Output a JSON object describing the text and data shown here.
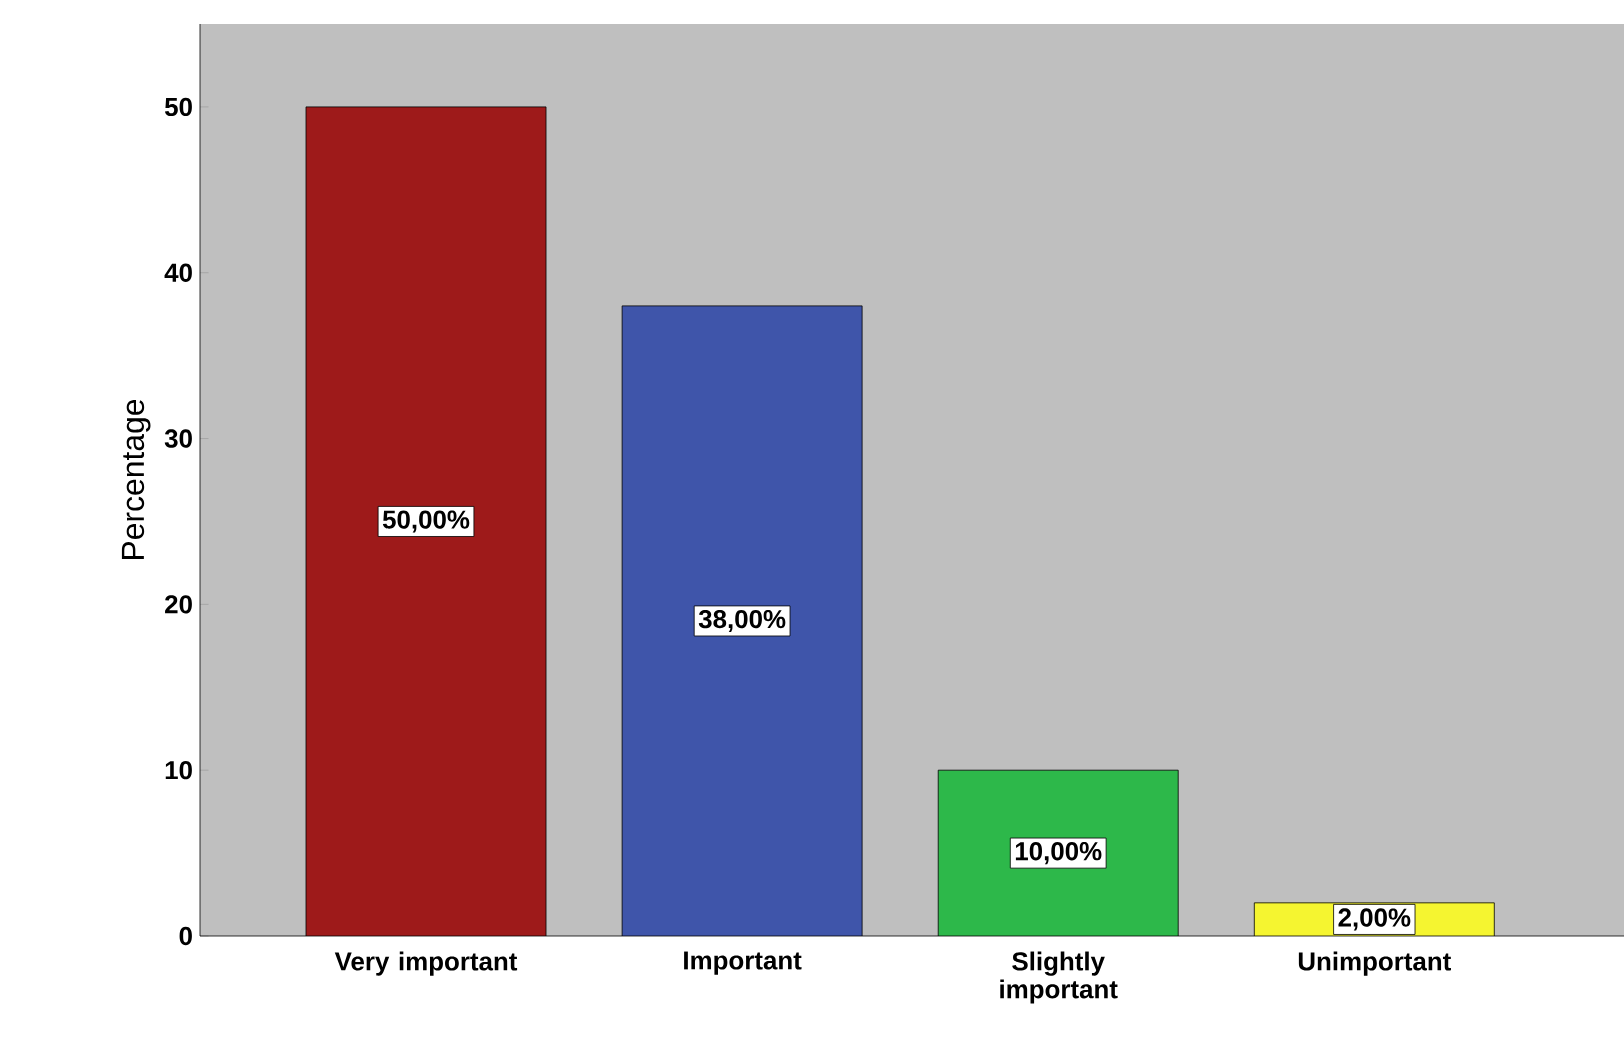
{
  "chart_data": {
    "type": "bar",
    "ylabel": "Percentage",
    "categories": [
      "Very important",
      "Important",
      "Slightly important",
      "Unimportant"
    ],
    "values": [
      50,
      38,
      10,
      2
    ],
    "colors": [
      "#9e1a1a",
      "#3f55aa",
      "#2db84a",
      "#f5f530"
    ],
    "value_labels": [
      "50,00%",
      "38,00%",
      "10,00%",
      "2,00%"
    ],
    "ylim": [
      0,
      55
    ],
    "yticks": [
      0,
      10,
      20,
      30,
      40,
      50
    ]
  }
}
